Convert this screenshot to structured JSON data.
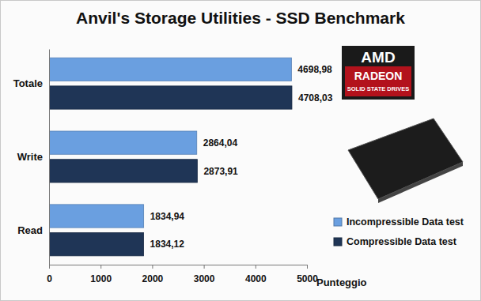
{
  "chart_data": {
    "type": "bar",
    "orientation": "horizontal",
    "title": "Anvil's Storage Utilities - SSD Benchmark",
    "x_label": "Punteggio",
    "categories": [
      "Totale",
      "Write",
      "Read"
    ],
    "series": [
      {
        "name": "Incompressible Data test",
        "color": "#6a9fe0",
        "values": [
          4698.98,
          2864.04,
          1834.94
        ],
        "value_labels": [
          "4698,98",
          "2864,04",
          "1834,94"
        ]
      },
      {
        "name": "Compressible Data test",
        "color": "#1f3556",
        "values": [
          4708.03,
          2873.91,
          1834.12
        ],
        "value_labels": [
          "4708,03",
          "2873,91",
          "1834,12"
        ]
      }
    ],
    "xlim": [
      0,
      5000
    ],
    "xticks": [
      0,
      1000,
      2000,
      3000,
      4000,
      5000
    ],
    "grid": false,
    "legend": "lower right",
    "data_labels": true,
    "annotations": [
      "AMD",
      "RADEON",
      "SOLID STATE DRIVES"
    ]
  }
}
